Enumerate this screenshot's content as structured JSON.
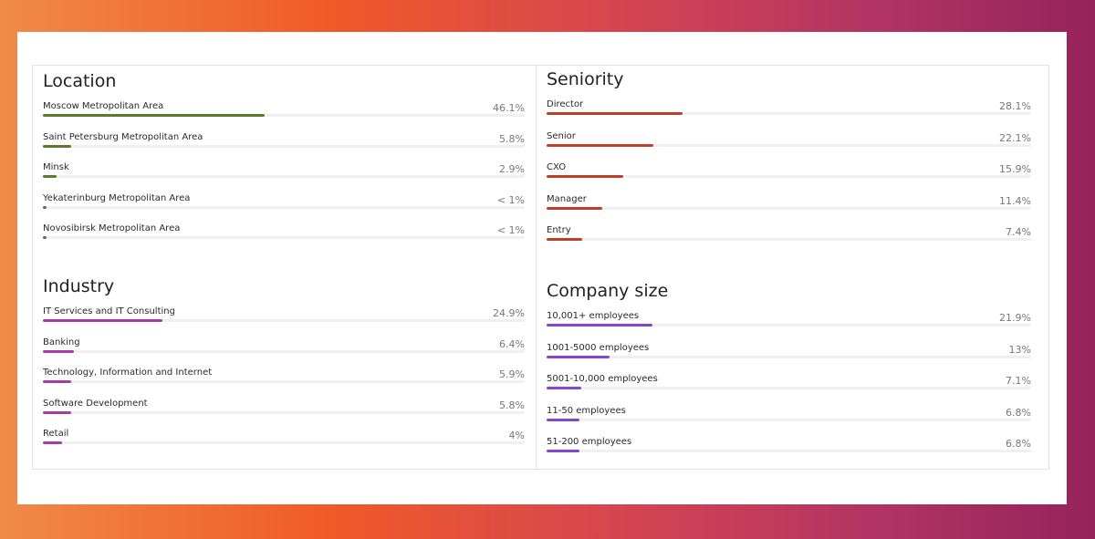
{
  "location": {
    "title": "Location",
    "color": "#5b7a2c",
    "items": [
      {
        "label": "Moscow Metropolitan Area",
        "value": "46.1%",
        "fraction": 0.461
      },
      {
        "label": "Saint Petersburg Metropolitan Area",
        "value": "5.8%",
        "fraction": 0.058
      },
      {
        "label": "Minsk",
        "value": "2.9%",
        "fraction": 0.029
      },
      {
        "label": "Yekaterinburg Metropolitan Area",
        "value": "< 1%",
        "fraction": 0.008
      },
      {
        "label": "Novosibirsk Metropolitan Area",
        "value": "< 1%",
        "fraction": 0.008
      }
    ]
  },
  "industry": {
    "title": "Industry",
    "color": "#a73ca9",
    "items": [
      {
        "label": "IT Services and IT Consulting",
        "value": "24.9%",
        "fraction": 0.249
      },
      {
        "label": "Banking",
        "value": "6.4%",
        "fraction": 0.064
      },
      {
        "label": "Technology, Information and Internet",
        "value": "5.9%",
        "fraction": 0.059
      },
      {
        "label": "Software Development",
        "value": "5.8%",
        "fraction": 0.058
      },
      {
        "label": "Retail",
        "value": "4%",
        "fraction": 0.04
      }
    ]
  },
  "seniority": {
    "title": "Seniority",
    "color": "#bd4128",
    "items": [
      {
        "label": "Director",
        "value": "28.1%",
        "fraction": 0.281
      },
      {
        "label": "Senior",
        "value": "22.1%",
        "fraction": 0.221
      },
      {
        "label": "CXO",
        "value": "15.9%",
        "fraction": 0.159
      },
      {
        "label": "Manager",
        "value": "11.4%",
        "fraction": 0.114
      },
      {
        "label": "Entry",
        "value": "7.4%",
        "fraction": 0.074
      }
    ]
  },
  "company_size": {
    "title": "Company size",
    "color": "#8545d6",
    "items": [
      {
        "label": "10,001+ employees",
        "value": "21.9%",
        "fraction": 0.219
      },
      {
        "label": "1001-5000 employees",
        "value": "13%",
        "fraction": 0.13
      },
      {
        "label": "5001-10,000 employees",
        "value": "7.1%",
        "fraction": 0.071
      },
      {
        "label": "11-50 employees",
        "value": "6.8%",
        "fraction": 0.068
      },
      {
        "label": "51-200 employees",
        "value": "6.8%",
        "fraction": 0.068
      }
    ]
  }
}
